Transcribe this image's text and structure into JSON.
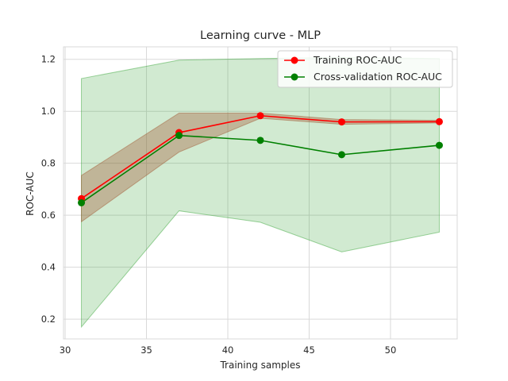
{
  "chart_data": {
    "type": "line",
    "title": "Learning curve - MLP",
    "xlabel": "Training samples",
    "ylabel": "ROC-AUC",
    "xlim": [
      29.9,
      54.1
    ],
    "ylim": [
      0.124,
      1.248
    ],
    "xticks": [
      30,
      35,
      40,
      45,
      50
    ],
    "yticks": [
      0.2,
      0.4,
      0.6,
      0.8,
      1.0,
      1.2
    ],
    "xtick_labels": [
      "30",
      "35",
      "40",
      "45",
      "50"
    ],
    "ytick_labels": [
      "0.2",
      "0.4",
      "0.6",
      "0.8",
      "1.0",
      "1.2"
    ],
    "grid": true,
    "legend_position": "upper right",
    "x": [
      31,
      37,
      42,
      47,
      53
    ],
    "series": [
      {
        "name": "Training ROC-AUC",
        "color": "#ff0000",
        "values": [
          0.664,
          0.918,
          0.983,
          0.959,
          0.96
        ],
        "band_lower": [
          0.575,
          0.843,
          0.973,
          0.95,
          0.955
        ],
        "band_upper": [
          0.753,
          0.993,
          0.993,
          0.968,
          0.965
        ],
        "band_color": "#a0522d"
      },
      {
        "name": "Cross-validation ROC-AUC",
        "color": "#008000",
        "values": [
          0.648,
          0.907,
          0.888,
          0.833,
          0.869
        ],
        "band_lower": [
          0.17,
          0.617,
          0.573,
          0.459,
          0.535
        ],
        "band_upper": [
          1.126,
          1.197,
          1.203,
          1.207,
          1.203
        ],
        "band_color": "#2ca02c"
      }
    ]
  }
}
